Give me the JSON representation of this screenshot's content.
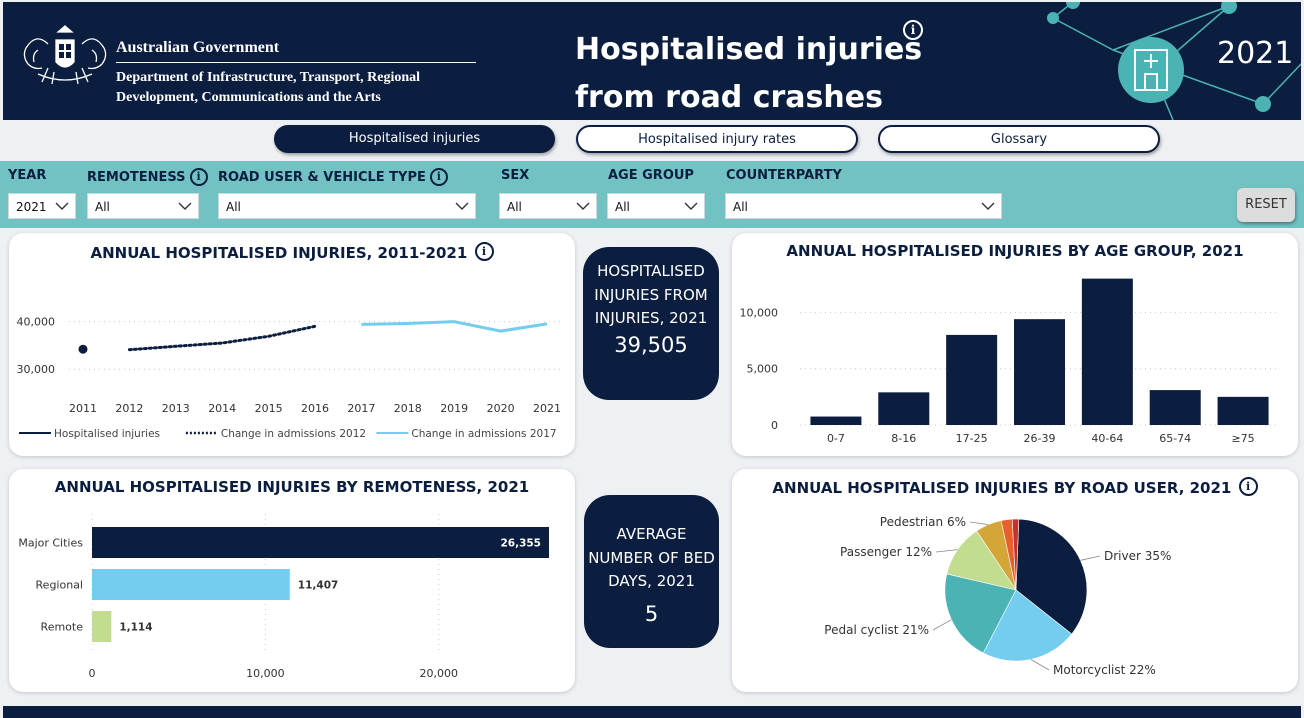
{
  "header": {
    "gov_name": "Australian Government",
    "department": "Department of Infrastructure, Transport, Regional Development, Communications and the Arts",
    "title": "Hospitalised injuries from road crashes",
    "year": "2021"
  },
  "nav": {
    "tabs": [
      {
        "label": "Hospitalised injuries",
        "active": true
      },
      {
        "label": "Hospitalised injury rates",
        "active": false
      },
      {
        "label": "Glossary",
        "active": false
      }
    ]
  },
  "filters": {
    "year": {
      "label": "YEAR",
      "value": "2021"
    },
    "remoteness": {
      "label": "REMOTENESS",
      "value": "All"
    },
    "road_user": {
      "label": "ROAD USER & VEHICLE TYPE",
      "value": "All"
    },
    "sex": {
      "label": "SEX",
      "value": "All"
    },
    "age_group": {
      "label": "AGE GROUP",
      "value": "All"
    },
    "counterparty": {
      "label": "COUNTERPARTY",
      "value": "All"
    },
    "reset_label": "RESET"
  },
  "kpis": {
    "injuries": {
      "label": "HOSPITALISED INJURIES FROM INJURIES, 2021",
      "value": "39,505"
    },
    "bed_days": {
      "label": "AVERAGE NUMBER OF BED DAYS, 2021",
      "value": "5"
    }
  },
  "colors": {
    "navy": "#0b1e3f",
    "teal": "#72c2c4",
    "light_blue": "#74cdef",
    "light_green": "#c2dd8f",
    "pie_teal": "#4bb3b4",
    "pie_green": "#c2dd8f",
    "pie_mustard": "#d4a537",
    "pie_orange": "#e8602c",
    "pie_red": "#c0362c"
  },
  "chart_data": [
    {
      "type": "line",
      "title": "ANNUAL HOSPITALISED INJURIES, 2011-2021",
      "x": [
        2011,
        2012,
        2013,
        2014,
        2015,
        2016,
        2017,
        2018,
        2019,
        2020,
        2021
      ],
      "ylim": [
        25000,
        46000
      ],
      "yticks": [
        {
          "value": 30000,
          "label": "30,000"
        },
        {
          "value": 40000,
          "label": "40,000"
        }
      ],
      "series": [
        {
          "name": "Hospitalised injuries",
          "style": "solid",
          "points": [
            [
              2011,
              34200
            ]
          ]
        },
        {
          "name": "Change in admissions 2012",
          "style": "dotted",
          "points": [
            [
              2012,
              34100
            ],
            [
              2013,
              34800
            ],
            [
              2014,
              35500
            ],
            [
              2015,
              36900
            ],
            [
              2016,
              39000
            ]
          ]
        },
        {
          "name": "Change in admissions 2017",
          "style": "light",
          "points": [
            [
              2017,
              39400
            ],
            [
              2018,
              39600
            ],
            [
              2019,
              40000
            ],
            [
              2020,
              38000
            ],
            [
              2021,
              39505
            ]
          ]
        }
      ],
      "grid": true,
      "legend_position": "bottom"
    },
    {
      "type": "bar",
      "title": "ANNUAL HOSPITALISED INJURIES BY AGE GROUP, 2021",
      "categories": [
        "0-7",
        "8-16",
        "17-25",
        "26-39",
        "40-64",
        "65-74",
        "≥75"
      ],
      "values": [
        750,
        2900,
        8000,
        9400,
        13000,
        3100,
        2500
      ],
      "ylim": [
        0,
        13500
      ],
      "yticks": [
        {
          "value": 0,
          "label": "0"
        },
        {
          "value": 5000,
          "label": "5,000"
        },
        {
          "value": 10000,
          "label": "10,000"
        }
      ],
      "grid": true
    },
    {
      "type": "bar",
      "orientation": "horizontal",
      "title": "ANNUAL HOSPITALISED INJURIES BY REMOTENESS, 2021",
      "categories": [
        "Major Cities",
        "Regional",
        "Remote"
      ],
      "values": [
        26355,
        11407,
        1114
      ],
      "value_labels": [
        "26,355",
        "11,407",
        "1,114"
      ],
      "xlim": [
        0,
        26355
      ],
      "xticks": [
        {
          "value": 0,
          "label": "0"
        },
        {
          "value": 10000,
          "label": "10,000"
        },
        {
          "value": 20000,
          "label": "20,000"
        }
      ],
      "grid": true
    },
    {
      "type": "pie",
      "title": "ANNUAL HOSPITALISED INJURIES BY ROAD USER, 2021",
      "slices": [
        {
          "name": "Driver",
          "value": 35,
          "label": "Driver 35%"
        },
        {
          "name": "Motorcyclist",
          "value": 22,
          "label": "Motorcyclist 22%"
        },
        {
          "name": "Pedal cyclist",
          "value": 21,
          "label": "Pedal cyclist 21%"
        },
        {
          "name": "Passenger",
          "value": 12,
          "label": "Passenger 12%"
        },
        {
          "name": "Pedestrian",
          "value": 6,
          "label": "Pedestrian 6%"
        },
        {
          "name": "",
          "value": 2.5,
          "label": ""
        },
        {
          "name": "",
          "value": 1.5,
          "label": ""
        }
      ]
    }
  ]
}
